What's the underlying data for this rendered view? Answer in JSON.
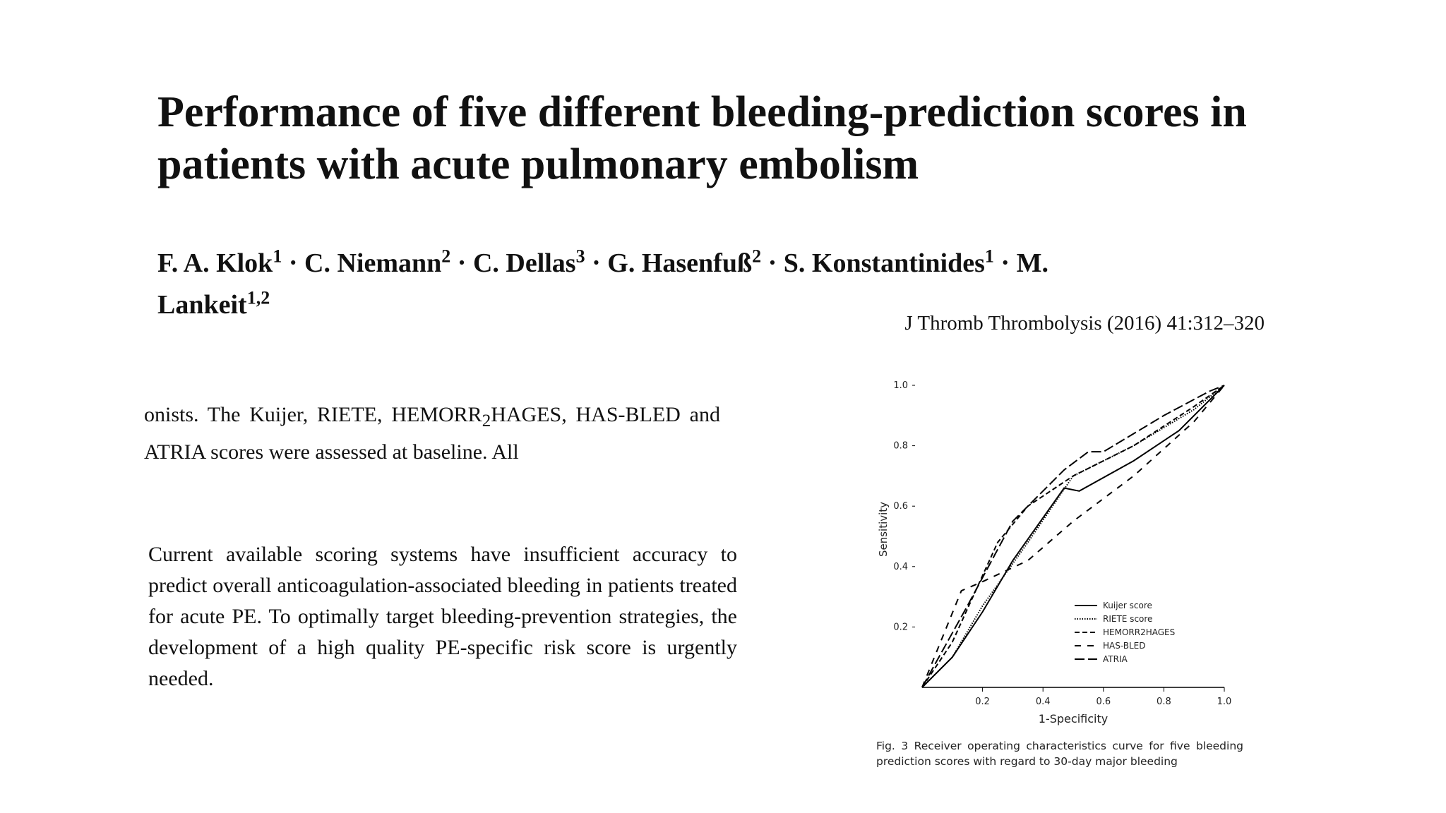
{
  "title": "Performance of five different bleeding-prediction scores in patients with acute pulmonary embolism",
  "author_separator": "·",
  "authors": [
    {
      "name": "F. A. Klok",
      "affiliation": "1"
    },
    {
      "name": "C. Niemann",
      "affiliation": "2"
    },
    {
      "name": "C. Dellas",
      "affiliation": "3"
    },
    {
      "name": "G. Hasenfuß",
      "affiliation": "2"
    },
    {
      "name": "S. Konstantinides",
      "affiliation": "1"
    },
    {
      "name": "M. Lankeit",
      "affiliation": "1,2"
    }
  ],
  "journal": "J Thromb Thrombolysis (2016) 41:312–320",
  "excerpt_1": [
    "onists. The Kuijer, RIETE, HEMORR",
    "2",
    "HAGES, HAS-BLED and ATRIA scores were assessed at baseline. All"
  ],
  "excerpt_2": "Current available scoring systems have insufficient accuracy to predict overall anticoagulation-associated bleeding in patients treated for acute PE. To optimally target bleeding-prevention strategies, the development of a high quality PE-specific risk score is urgently needed.",
  "chart_data": {
    "type": "line",
    "xlabel": "1-Specificity",
    "ylabel": "Sensitivity",
    "xlim": [
      0,
      1
    ],
    "ylim": [
      0,
      1
    ],
    "xticks": [
      0.2,
      0.4,
      0.6,
      0.8,
      {
        "value": 1,
        "label": "1.0"
      }
    ],
    "yticks": [
      0.2,
      0.4,
      0.6,
      0.8,
      {
        "value": 1,
        "label": "1.0"
      }
    ],
    "series": [
      {
        "name": "Kuijer score",
        "color": "#000000",
        "dash": "solid",
        "x": [
          0,
          0.1,
          0.2,
          0.3,
          0.47,
          0.52,
          0.7,
          0.85,
          1
        ],
        "values": [
          0,
          0.1,
          0.25,
          0.42,
          0.66,
          0.65,
          0.75,
          0.85,
          1
        ]
      },
      {
        "name": "RIETE score",
        "color": "#000000",
        "dash": "dotted",
        "x": [
          0,
          0.1,
          0.2,
          0.35,
          0.5,
          0.7,
          0.9,
          1
        ],
        "values": [
          0,
          0.1,
          0.27,
          0.48,
          0.7,
          0.8,
          0.92,
          1
        ]
      },
      {
        "name": "HEMORR2HAGES",
        "color": "#000000",
        "dash": "dashed",
        "x": [
          0,
          0.1,
          0.25,
          0.35,
          0.5,
          0.7,
          0.9,
          1
        ],
        "values": [
          0,
          0.15,
          0.48,
          0.6,
          0.7,
          0.8,
          0.93,
          1
        ]
      },
      {
        "name": "HAS-BLED",
        "color": "#000000",
        "dash": "sparse",
        "x": [
          0,
          0.13,
          0.2,
          0.35,
          0.5,
          0.7,
          0.9,
          1
        ],
        "values": [
          0,
          0.32,
          0.35,
          0.42,
          0.55,
          0.7,
          0.88,
          1
        ]
      },
      {
        "name": "ATRIA",
        "color": "#000000",
        "dash": "long",
        "x": [
          0,
          0.15,
          0.3,
          0.4,
          0.47,
          0.55,
          0.6,
          0.8,
          0.95,
          1
        ],
        "values": [
          0,
          0.27,
          0.55,
          0.65,
          0.72,
          0.78,
          0.78,
          0.9,
          0.98,
          1
        ]
      }
    ],
    "caption": "Fig. 3 Receiver operating characteristics curve for five bleeding prediction scores with regard to 30-day major bleeding"
  }
}
